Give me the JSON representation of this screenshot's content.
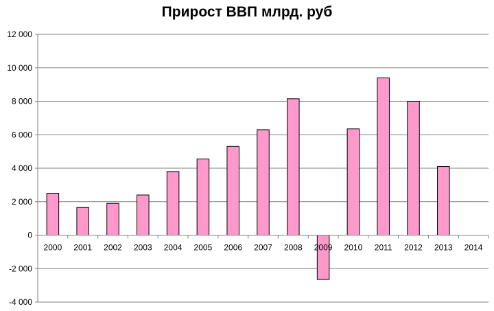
{
  "chart_data": {
    "type": "bar",
    "title": "Прирост ВВП млрд. руб",
    "xlabel": "",
    "ylabel": "",
    "categories": [
      "2000",
      "2001",
      "2002",
      "2003",
      "2004",
      "2005",
      "2006",
      "2007",
      "2008",
      "2009",
      "2010",
      "2011",
      "2012",
      "2013",
      "2014"
    ],
    "values": [
      2500,
      1650,
      1900,
      2400,
      3800,
      4550,
      5300,
      6300,
      8150,
      -2650,
      6350,
      9400,
      8000,
      4100,
      null
    ],
    "ylim": [
      -4000,
      12000
    ],
    "yticks": [
      -4000,
      -2000,
      0,
      2000,
      4000,
      6000,
      8000,
      10000,
      12000
    ],
    "ytick_labels": [
      "-4 000",
      "-2 000",
      "0",
      "2 000",
      "4 000",
      "6 000",
      "8 000",
      "10 000",
      "12 000"
    ],
    "grid": true,
    "legend": "none",
    "bar_color": "#ff99cc",
    "bar_edge_color": "#000000"
  }
}
